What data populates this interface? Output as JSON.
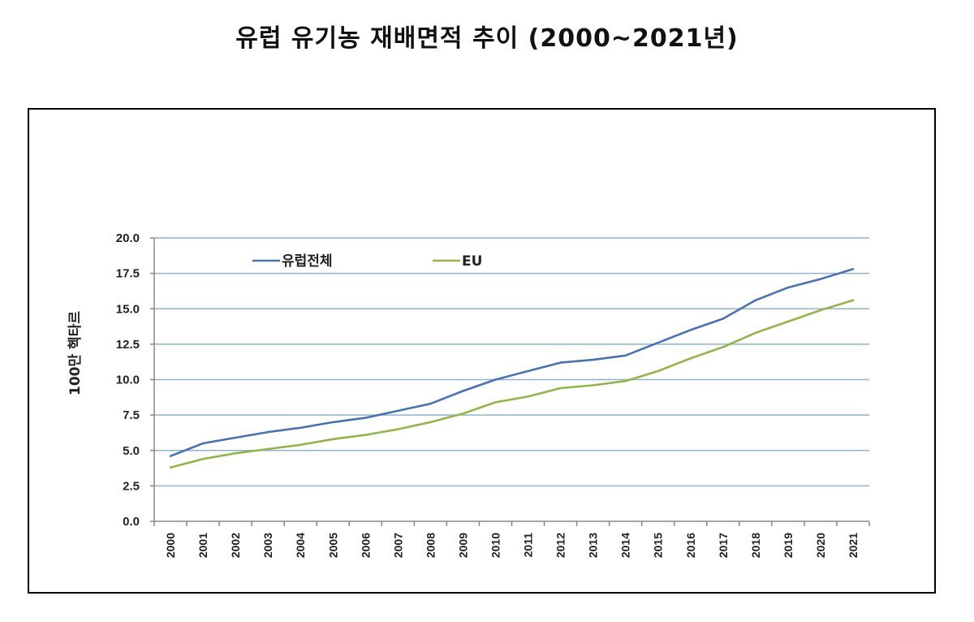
{
  "title": "유럽 유기농 재배면적 추이 (2000~2021년)",
  "colors": {
    "series_1": "#4a72b0",
    "series_2": "#92b44a",
    "grid": "#8fb3cc",
    "axis": "#888888"
  },
  "chart_data": {
    "type": "line",
    "title": "",
    "xlabel": "",
    "ylabel": "100만 헥타르",
    "ylim": [
      0,
      20
    ],
    "yticks": [
      "0.0",
      "2.5",
      "5.0",
      "7.5",
      "10.0",
      "12.5",
      "15.0",
      "17.5",
      "20.0"
    ],
    "grid": true,
    "legend_position": "top-left",
    "x": [
      "2000",
      "2001",
      "2002",
      "2003",
      "2004",
      "2005",
      "2006",
      "2007",
      "2008",
      "2009",
      "2010",
      "2011",
      "2012",
      "2013",
      "2014",
      "2015",
      "2016",
      "2017",
      "2018",
      "2019",
      "2020",
      "2021"
    ],
    "series": [
      {
        "name": "유럽전체",
        "values": [
          4.6,
          5.5,
          5.9,
          6.3,
          6.6,
          7.0,
          7.3,
          7.8,
          8.3,
          9.2,
          10.0,
          10.6,
          11.2,
          11.4,
          11.7,
          12.6,
          13.5,
          14.3,
          15.6,
          16.5,
          17.1,
          17.8
        ]
      },
      {
        "name": "EU",
        "values": [
          3.8,
          4.4,
          4.8,
          5.1,
          5.4,
          5.8,
          6.1,
          6.5,
          7.0,
          7.6,
          8.4,
          8.8,
          9.4,
          9.6,
          9.9,
          10.6,
          11.5,
          12.3,
          13.3,
          14.1,
          14.9,
          15.6
        ]
      }
    ]
  }
}
